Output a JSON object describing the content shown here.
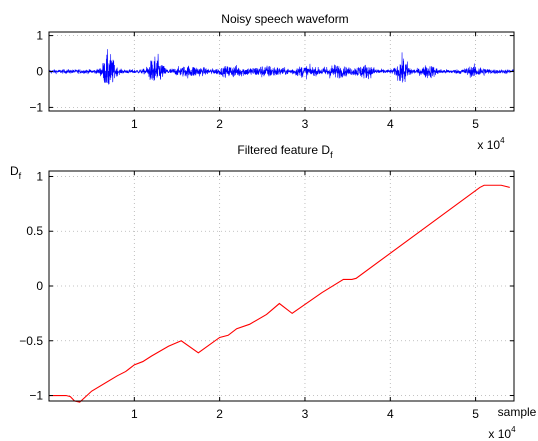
{
  "chart_data": [
    {
      "type": "line",
      "title": "Noisy speech waveform",
      "xlabel": "",
      "ylabel": "",
      "xlim": [
        0,
        54500
      ],
      "ylim": [
        -1.1,
        1.1
      ],
      "grid": true,
      "x_ticks": [
        10000,
        20000,
        30000,
        40000,
        50000
      ],
      "x_tick_labels": [
        "1",
        "2",
        "3",
        "4",
        "5"
      ],
      "x_exponent_label": "x 10",
      "x_exponent_power": "4",
      "y_ticks": [
        -1,
        0,
        1
      ],
      "y_tick_labels": [
        "−1",
        "0",
        "1"
      ],
      "color": "#0000ff",
      "noise_amplitude": 0.1,
      "bursts": [
        {
          "center": 7000,
          "width": 700,
          "amp": 0.85
        },
        {
          "center": 12500,
          "width": 800,
          "amp": 0.7
        },
        {
          "center": 16500,
          "width": 1800,
          "amp": 0.2
        },
        {
          "center": 21500,
          "width": 1500,
          "amp": 0.2
        },
        {
          "center": 25500,
          "width": 2000,
          "amp": 0.2
        },
        {
          "center": 30000,
          "width": 1200,
          "amp": 0.2
        },
        {
          "center": 33500,
          "width": 1500,
          "amp": 0.25
        },
        {
          "center": 37000,
          "width": 1200,
          "amp": 0.25
        },
        {
          "center": 41500,
          "width": 700,
          "amp": 0.6
        },
        {
          "center": 44500,
          "width": 900,
          "amp": 0.25
        },
        {
          "center": 50000,
          "width": 1200,
          "amp": 0.2
        }
      ]
    },
    {
      "type": "line",
      "title_main": "Filtered feature D",
      "title_sub": "f",
      "ylabel_main": "D",
      "ylabel_sub": "f",
      "xlabel": "sample",
      "xlim": [
        0,
        54500
      ],
      "ylim": [
        -1.05,
        1.05
      ],
      "grid": true,
      "x_ticks": [
        10000,
        20000,
        30000,
        40000,
        50000
      ],
      "x_tick_labels": [
        "1",
        "2",
        "3",
        "4",
        "5"
      ],
      "x_exponent_label": "x 10",
      "x_exponent_power": "4",
      "y_ticks": [
        -1,
        -0.5,
        0,
        0.5,
        1
      ],
      "y_tick_labels": [
        "−1",
        "−0.5",
        "0",
        "0.5",
        "1"
      ],
      "color": "#ff0000",
      "x": [
        0,
        2000,
        2500,
        3000,
        3600,
        5000,
        8000,
        9000,
        10000,
        11000,
        12000,
        14000,
        15500,
        17500,
        20000,
        21000,
        22000,
        23500,
        25500,
        27000,
        28500,
        32000,
        34500,
        35500,
        36000,
        50500,
        51000,
        53000,
        54000
      ],
      "y": [
        -1.0,
        -1.0,
        -1.01,
        -1.05,
        -1.06,
        -0.96,
        -0.82,
        -0.78,
        -0.72,
        -0.69,
        -0.64,
        -0.55,
        -0.5,
        -0.61,
        -0.47,
        -0.45,
        -0.39,
        -0.35,
        -0.26,
        -0.16,
        -0.25,
        -0.06,
        0.06,
        0.06,
        0.07,
        0.9,
        0.92,
        0.92,
        0.9
      ]
    }
  ]
}
